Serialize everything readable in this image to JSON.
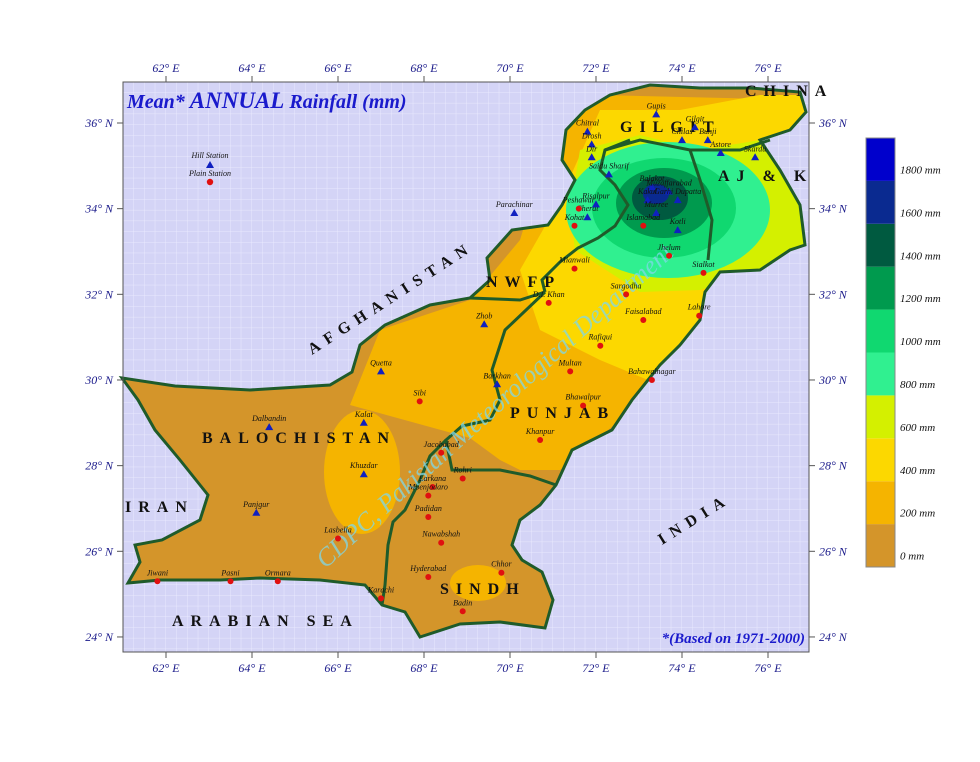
{
  "title": {
    "prefix": "Mean*",
    "emphasis": "ANNUAL",
    "suffix": "Rainfall (mm)"
  },
  "note": "*(Based on 1971-2000)",
  "watermark": "CDPC, Pakistan Meteorological Department",
  "lon_ticks": [
    {
      "value": 62,
      "label": "62° E"
    },
    {
      "value": 64,
      "label": "64° E"
    },
    {
      "value": 66,
      "label": "66° E"
    },
    {
      "value": 68,
      "label": "68° E"
    },
    {
      "value": 70,
      "label": "70° E"
    },
    {
      "value": 72,
      "label": "72° E"
    },
    {
      "value": 74,
      "label": "74° E"
    },
    {
      "value": 76,
      "label": "76° E"
    }
  ],
  "lat_ticks": [
    {
      "value": 24,
      "label": "24° N"
    },
    {
      "value": 26,
      "label": "26° N"
    },
    {
      "value": 28,
      "label": "28° N"
    },
    {
      "value": 30,
      "label": "30° N"
    },
    {
      "value": 32,
      "label": "32° N"
    },
    {
      "value": 34,
      "label": "34° N"
    },
    {
      "value": 36,
      "label": "36° N"
    }
  ],
  "legend": [
    {
      "value": 0,
      "label": "0 mm",
      "color": "#d4952a"
    },
    {
      "value": 200,
      "label": "200 mm",
      "color": "#f5b400"
    },
    {
      "value": 400,
      "label": "400 mm",
      "color": "#fcd800"
    },
    {
      "value": 600,
      "label": "600 mm",
      "color": "#d4f000"
    },
    {
      "value": 800,
      "label": "800 mm",
      "color": "#30f090"
    },
    {
      "value": 1000,
      "label": "1000 mm",
      "color": "#10d870"
    },
    {
      "value": 1200,
      "label": "1200 mm",
      "color": "#009a4e"
    },
    {
      "value": 1400,
      "label": "1400 mm",
      "color": "#005a40"
    },
    {
      "value": 1600,
      "label": "1600 mm",
      "color": "#0a2a90"
    },
    {
      "value": 1800,
      "label": "1800 mm",
      "color": "#0000cc"
    }
  ],
  "station_types": {
    "hill": "Hill Station",
    "plain": "Plain Station"
  },
  "regions": {
    "afghanistan": "AFGHANISTAN",
    "china": "CHINA",
    "iran": "IRAN",
    "india": "INDIA",
    "sea": "ARABIAN SEA",
    "balochistan": "BALOCHISTAN",
    "punjab": "PUNJAB",
    "sindh": "SINDH",
    "nwfp": "NWFP",
    "gilgit": "GILGIT",
    "ajk": "AJ & K"
  },
  "stations": [
    {
      "name": "Gupis",
      "type": "hill",
      "lon": 73.4,
      "lat": 36.2
    },
    {
      "name": "Gilgit",
      "type": "hill",
      "lon": 74.3,
      "lat": 35.9
    },
    {
      "name": "Chilas",
      "type": "hill",
      "lon": 74.0,
      "lat": 35.6
    },
    {
      "name": "Bunji",
      "type": "hill",
      "lon": 74.6,
      "lat": 35.6
    },
    {
      "name": "Astore",
      "type": "hill",
      "lon": 74.9,
      "lat": 35.3
    },
    {
      "name": "Skardu",
      "type": "hill",
      "lon": 75.7,
      "lat": 35.2
    },
    {
      "name": "Chitral",
      "type": "hill",
      "lon": 71.8,
      "lat": 35.8
    },
    {
      "name": "Drosh",
      "type": "hill",
      "lon": 71.9,
      "lat": 35.5
    },
    {
      "name": "Dir",
      "type": "hill",
      "lon": 71.9,
      "lat": 35.2
    },
    {
      "name": "Saidu Sharif",
      "type": "hill",
      "lon": 72.3,
      "lat": 34.8
    },
    {
      "name": "Balakot",
      "type": "hill",
      "lon": 73.3,
      "lat": 34.5
    },
    {
      "name": "Muzaffarabad",
      "type": "hill",
      "lon": 73.7,
      "lat": 34.4
    },
    {
      "name": "Kakul",
      "type": "hill",
      "lon": 73.2,
      "lat": 34.2
    },
    {
      "name": "Garhi Dupatta",
      "type": "hill",
      "lon": 73.9,
      "lat": 34.2
    },
    {
      "name": "Murree",
      "type": "hill",
      "lon": 73.4,
      "lat": 33.9
    },
    {
      "name": "Kotli",
      "type": "hill",
      "lon": 73.9,
      "lat": 33.5
    },
    {
      "name": "Parachinar",
      "type": "hill",
      "lon": 70.1,
      "lat": 33.9
    },
    {
      "name": "Cherat",
      "type": "hill",
      "lon": 71.8,
      "lat": 33.8
    },
    {
      "name": "Risalpur",
      "type": "hill",
      "lon": 72.0,
      "lat": 34.1
    },
    {
      "name": "Zhob",
      "type": "hill",
      "lon": 69.4,
      "lat": 31.3
    },
    {
      "name": "Quetta",
      "type": "hill",
      "lon": 67.0,
      "lat": 30.2
    },
    {
      "name": "Barkhan",
      "type": "hill",
      "lon": 69.7,
      "lat": 29.9
    },
    {
      "name": "Kalat",
      "type": "hill",
      "lon": 66.6,
      "lat": 29.0
    },
    {
      "name": "Dalbandin",
      "type": "hill",
      "lon": 64.4,
      "lat": 28.9
    },
    {
      "name": "Khuzdar",
      "type": "hill",
      "lon": 66.6,
      "lat": 27.8
    },
    {
      "name": "Panjgur",
      "type": "hill",
      "lon": 64.1,
      "lat": 26.9
    },
    {
      "name": "Peshawar",
      "type": "plain",
      "lon": 71.6,
      "lat": 34.0
    },
    {
      "name": "Kohat",
      "type": "plain",
      "lon": 71.5,
      "lat": 33.6
    },
    {
      "name": "Islamabad",
      "type": "plain",
      "lon": 73.1,
      "lat": 33.6
    },
    {
      "name": "Jhelum",
      "type": "plain",
      "lon": 73.7,
      "lat": 32.9
    },
    {
      "name": "Sialkot",
      "type": "plain",
      "lon": 74.5,
      "lat": 32.5
    },
    {
      "name": "Mianwali",
      "type": "plain",
      "lon": 71.5,
      "lat": 32.6
    },
    {
      "name": "D.I. Khan",
      "type": "plain",
      "lon": 70.9,
      "lat": 31.8
    },
    {
      "name": "Sargodha",
      "type": "plain",
      "lon": 72.7,
      "lat": 32.0
    },
    {
      "name": "Lahore",
      "type": "plain",
      "lon": 74.4,
      "lat": 31.5
    },
    {
      "name": "Faisalabad",
      "type": "plain",
      "lon": 73.1,
      "lat": 31.4
    },
    {
      "name": "Rafiqui",
      "type": "plain",
      "lon": 72.1,
      "lat": 30.8
    },
    {
      "name": "Multan",
      "type": "plain",
      "lon": 71.4,
      "lat": 30.2
    },
    {
      "name": "Bahawalnagar",
      "type": "plain",
      "lon": 73.3,
      "lat": 30.0
    },
    {
      "name": "Bhawalpur",
      "type": "plain",
      "lon": 71.7,
      "lat": 29.4
    },
    {
      "name": "Khanpur",
      "type": "plain",
      "lon": 70.7,
      "lat": 28.6
    },
    {
      "name": "Sibi",
      "type": "plain",
      "lon": 67.9,
      "lat": 29.5
    },
    {
      "name": "Jacobabad",
      "type": "plain",
      "lon": 68.4,
      "lat": 28.3
    },
    {
      "name": "Rohri",
      "type": "plain",
      "lon": 68.9,
      "lat": 27.7
    },
    {
      "name": "Larkana",
      "type": "plain",
      "lon": 68.2,
      "lat": 27.5
    },
    {
      "name": "Moenjodaro",
      "type": "plain",
      "lon": 68.1,
      "lat": 27.3
    },
    {
      "name": "Padidan",
      "type": "plain",
      "lon": 68.1,
      "lat": 26.8
    },
    {
      "name": "Nawabshah",
      "type": "plain",
      "lon": 68.4,
      "lat": 26.2
    },
    {
      "name": "Hyderabad",
      "type": "plain",
      "lon": 68.1,
      "lat": 25.4
    },
    {
      "name": "Chhor",
      "type": "plain",
      "lon": 69.8,
      "lat": 25.5
    },
    {
      "name": "Badin",
      "type": "plain",
      "lon": 68.9,
      "lat": 24.6
    },
    {
      "name": "Karachi",
      "type": "plain",
      "lon": 67.0,
      "lat": 24.9
    },
    {
      "name": "Lasbella",
      "type": "plain",
      "lon": 66.0,
      "lat": 26.3
    },
    {
      "name": "Jiwani",
      "type": "plain",
      "lon": 61.8,
      "lat": 25.3
    },
    {
      "name": "Pasni",
      "type": "plain",
      "lon": 63.5,
      "lat": 25.3
    },
    {
      "name": "Ormara",
      "type": "plain",
      "lon": 64.6,
      "lat": 25.3
    }
  ]
}
